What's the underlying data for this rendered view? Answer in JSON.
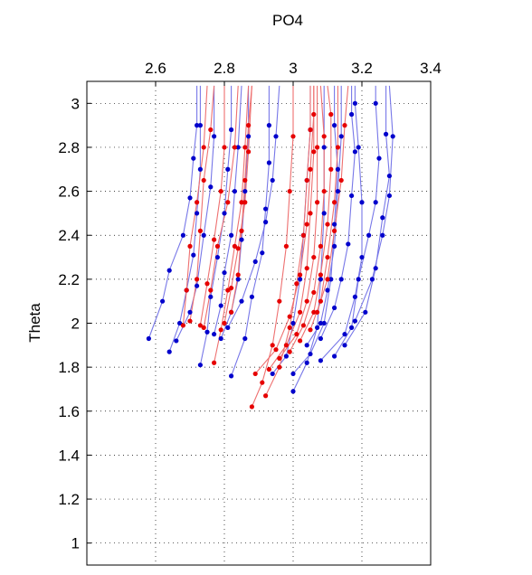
{
  "chart_data": {
    "type": "line",
    "title": "",
    "xlabel": "PO4",
    "ylabel": "Theta",
    "xlim": [
      2.4,
      3.4
    ],
    "ylim": [
      0.9,
      3.1
    ],
    "x_ticks": [
      "2.6",
      "2.8",
      "3",
      "3.2",
      "3.4"
    ],
    "y_ticks": [
      "1",
      "1.2",
      "1.4",
      "1.6",
      "1.8",
      "2",
      "2.2",
      "2.4",
      "2.6",
      "2.8",
      "3"
    ],
    "x_tick_values": [
      2.6,
      2.8,
      3.0,
      3.2,
      3.4
    ],
    "y_tick_values": [
      1.0,
      1.2,
      1.4,
      1.6,
      1.8,
      2.0,
      2.2,
      2.4,
      2.6,
      2.8,
      3.0
    ],
    "x_axis_position": "top",
    "grid": true,
    "colors": {
      "blue": "#0000cc",
      "red": "#e60000",
      "blue_line": "#7777e8",
      "red_line": "#ee7070"
    },
    "series": [
      {
        "color": "blue",
        "points": [
          [
            2.58,
            1.93
          ],
          [
            2.62,
            2.1
          ],
          [
            2.64,
            2.24
          ],
          [
            2.68,
            2.4
          ],
          [
            2.7,
            2.57
          ],
          [
            2.71,
            2.75
          ],
          [
            2.72,
            2.9
          ],
          [
            2.72,
            3.08
          ]
        ]
      },
      {
        "color": "blue",
        "points": [
          [
            2.64,
            1.87
          ],
          [
            2.67,
            2.0
          ],
          [
            2.69,
            2.15
          ],
          [
            2.71,
            2.31
          ],
          [
            2.72,
            2.5
          ],
          [
            2.73,
            2.7
          ],
          [
            2.73,
            2.9
          ],
          [
            2.73,
            3.08
          ]
        ]
      },
      {
        "color": "blue",
        "points": [
          [
            2.66,
            1.92
          ],
          [
            2.7,
            2.05
          ],
          [
            2.72,
            2.17
          ],
          [
            2.74,
            2.4
          ],
          [
            2.76,
            2.62
          ],
          [
            2.77,
            2.85
          ],
          [
            2.77,
            3.08
          ]
        ]
      },
      {
        "color": "blue",
        "points": [
          [
            2.73,
            1.81
          ],
          [
            2.75,
            1.96
          ],
          [
            2.76,
            2.12
          ],
          [
            2.78,
            2.3
          ],
          [
            2.8,
            2.5
          ],
          [
            2.81,
            2.7
          ],
          [
            2.82,
            2.88
          ],
          [
            2.82,
            3.08
          ]
        ]
      },
      {
        "color": "blue",
        "points": [
          [
            2.77,
            1.95
          ],
          [
            2.79,
            2.08
          ],
          [
            2.8,
            2.23
          ],
          [
            2.82,
            2.4
          ],
          [
            2.83,
            2.6
          ],
          [
            2.84,
            2.8
          ],
          [
            2.85,
            3.08
          ]
        ]
      },
      {
        "color": "blue",
        "points": [
          [
            2.79,
            1.93
          ],
          [
            2.82,
            2.05
          ],
          [
            2.84,
            2.2
          ],
          [
            2.85,
            2.38
          ],
          [
            2.86,
            2.6
          ],
          [
            2.87,
            2.85
          ],
          [
            2.87,
            3.08
          ]
        ]
      },
      {
        "color": "blue",
        "points": [
          [
            2.82,
            1.76
          ],
          [
            2.86,
            1.93
          ],
          [
            2.88,
            2.12
          ],
          [
            2.91,
            2.32
          ],
          [
            2.92,
            2.52
          ],
          [
            2.93,
            2.73
          ],
          [
            2.93,
            2.9
          ],
          [
            2.93,
            3.08
          ]
        ]
      },
      {
        "color": "blue",
        "points": [
          [
            2.81,
            1.98
          ],
          [
            2.85,
            2.1
          ],
          [
            2.89,
            2.28
          ],
          [
            2.92,
            2.46
          ],
          [
            2.94,
            2.65
          ],
          [
            2.95,
            2.85
          ],
          [
            2.96,
            3.08
          ]
        ]
      },
      {
        "color": "blue",
        "points": [
          [
            2.94,
            1.77
          ],
          [
            2.98,
            1.85
          ],
          [
            3.0,
            2.0
          ],
          [
            3.02,
            2.2
          ],
          [
            3.03,
            2.4
          ],
          [
            3.04,
            2.65
          ],
          [
            3.05,
            2.88
          ],
          [
            3.05,
            3.08
          ]
        ]
      },
      {
        "color": "blue",
        "points": [
          [
            3.0,
            1.69
          ],
          [
            3.04,
            1.82
          ],
          [
            3.07,
            1.98
          ],
          [
            3.08,
            2.2
          ],
          [
            3.09,
            2.5
          ],
          [
            3.09,
            2.8
          ],
          [
            3.09,
            3.08
          ]
        ]
      },
      {
        "color": "blue",
        "points": [
          [
            3.0,
            1.77
          ],
          [
            3.05,
            1.86
          ],
          [
            3.09,
            2.0
          ],
          [
            3.11,
            2.2
          ],
          [
            3.12,
            2.45
          ],
          [
            3.13,
            2.7
          ],
          [
            3.12,
            2.9
          ],
          [
            3.12,
            3.08
          ]
        ]
      },
      {
        "color": "blue",
        "points": [
          [
            3.04,
            1.9
          ],
          [
            3.08,
            2.0
          ],
          [
            3.1,
            2.15
          ],
          [
            3.12,
            2.35
          ],
          [
            3.13,
            2.6
          ],
          [
            3.14,
            2.85
          ],
          [
            3.14,
            3.08
          ]
        ]
      },
      {
        "color": "blue",
        "points": [
          [
            3.08,
            1.93
          ],
          [
            3.12,
            2.07
          ],
          [
            3.14,
            2.2
          ],
          [
            3.16,
            2.36
          ],
          [
            3.17,
            2.58
          ],
          [
            3.18,
            2.78
          ],
          [
            3.17,
            2.95
          ],
          [
            3.17,
            3.08
          ]
        ]
      },
      {
        "color": "blue",
        "points": [
          [
            3.08,
            1.83
          ],
          [
            3.15,
            1.95
          ],
          [
            3.18,
            2.12
          ],
          [
            3.2,
            2.3
          ],
          [
            3.2,
            2.55
          ],
          [
            3.19,
            2.8
          ],
          [
            3.18,
            3.0
          ],
          [
            3.18,
            3.08
          ]
        ]
      },
      {
        "color": "blue",
        "points": [
          [
            3.12,
            1.85
          ],
          [
            3.17,
            1.98
          ],
          [
            3.19,
            2.2
          ],
          [
            3.22,
            2.4
          ],
          [
            3.24,
            2.55
          ],
          [
            3.25,
            2.75
          ],
          [
            3.24,
            3.0
          ],
          [
            3.24,
            3.08
          ]
        ]
      },
      {
        "color": "blue",
        "points": [
          [
            3.15,
            1.9
          ],
          [
            3.21,
            2.05
          ],
          [
            3.24,
            2.25
          ],
          [
            3.26,
            2.48
          ],
          [
            3.28,
            2.67
          ],
          [
            3.27,
            2.86
          ],
          [
            3.27,
            3.08
          ]
        ]
      },
      {
        "color": "blue",
        "points": [
          [
            3.18,
            2.01
          ],
          [
            3.23,
            2.2
          ],
          [
            3.26,
            2.4
          ],
          [
            3.28,
            2.58
          ],
          [
            3.29,
            2.85
          ],
          [
            3.28,
            3.08
          ]
        ]
      },
      {
        "color": "red",
        "points": [
          [
            2.68,
            1.99
          ],
          [
            2.69,
            2.15
          ],
          [
            2.7,
            2.35
          ],
          [
            2.72,
            2.55
          ],
          [
            2.74,
            2.8
          ],
          [
            2.75,
            3.08
          ]
        ]
      },
      {
        "color": "red",
        "points": [
          [
            2.7,
            2.01
          ],
          [
            2.72,
            2.2
          ],
          [
            2.73,
            2.42
          ],
          [
            2.74,
            2.65
          ],
          [
            2.76,
            2.88
          ],
          [
            2.77,
            3.08
          ]
        ]
      },
      {
        "color": "red",
        "points": [
          [
            2.73,
            1.99
          ],
          [
            2.75,
            2.18
          ],
          [
            2.77,
            2.38
          ],
          [
            2.79,
            2.6
          ],
          [
            2.8,
            2.8
          ],
          [
            2.8,
            3.08
          ]
        ]
      },
      {
        "color": "red",
        "points": [
          [
            2.74,
            1.98
          ],
          [
            2.76,
            2.15
          ],
          [
            2.78,
            2.35
          ],
          [
            2.81,
            2.55
          ],
          [
            2.83,
            2.8
          ],
          [
            2.84,
            3.08
          ]
        ]
      },
      {
        "color": "red",
        "points": [
          [
            2.77,
            1.82
          ],
          [
            2.79,
            1.97
          ],
          [
            2.81,
            2.15
          ],
          [
            2.83,
            2.35
          ],
          [
            2.85,
            2.55
          ],
          [
            2.86,
            2.8
          ],
          [
            2.87,
            3.08
          ]
        ]
      },
      {
        "color": "red",
        "points": [
          [
            2.8,
            2.0
          ],
          [
            2.82,
            2.16
          ],
          [
            2.84,
            2.34
          ],
          [
            2.86,
            2.55
          ],
          [
            2.87,
            2.78
          ],
          [
            2.88,
            3.08
          ]
        ]
      },
      {
        "color": "red",
        "points": [
          [
            2.82,
            2.05
          ],
          [
            2.84,
            2.22
          ],
          [
            2.85,
            2.42
          ],
          [
            2.86,
            2.65
          ],
          [
            2.87,
            2.9
          ],
          [
            2.88,
            3.08
          ]
        ]
      },
      {
        "color": "red",
        "points": [
          [
            2.88,
            1.62
          ],
          [
            2.91,
            1.73
          ],
          [
            2.94,
            1.9
          ],
          [
            2.96,
            2.1
          ],
          [
            2.98,
            2.35
          ],
          [
            2.99,
            2.6
          ],
          [
            3.0,
            2.85
          ],
          [
            3.0,
            3.08
          ]
        ]
      },
      {
        "color": "red",
        "points": [
          [
            2.92,
            1.67
          ],
          [
            2.96,
            1.8
          ],
          [
            2.99,
            1.98
          ],
          [
            3.01,
            2.18
          ],
          [
            3.03,
            2.4
          ],
          [
            3.04,
            2.65
          ],
          [
            3.05,
            2.88
          ],
          [
            3.05,
            3.08
          ]
        ]
      },
      {
        "color": "red",
        "points": [
          [
            2.89,
            1.77
          ],
          [
            2.95,
            1.88
          ],
          [
            2.99,
            2.03
          ],
          [
            3.02,
            2.22
          ],
          [
            3.04,
            2.45
          ],
          [
            3.05,
            2.7
          ],
          [
            3.06,
            2.95
          ],
          [
            3.06,
            3.08
          ]
        ]
      },
      {
        "color": "red",
        "points": [
          [
            2.93,
            1.79
          ],
          [
            2.98,
            1.9
          ],
          [
            3.02,
            2.05
          ],
          [
            3.04,
            2.25
          ],
          [
            3.05,
            2.5
          ],
          [
            3.06,
            2.78
          ],
          [
            3.06,
            3.08
          ]
        ]
      },
      {
        "color": "red",
        "points": [
          [
            2.96,
            1.84
          ],
          [
            3.01,
            1.95
          ],
          [
            3.04,
            2.1
          ],
          [
            3.06,
            2.3
          ],
          [
            3.07,
            2.55
          ],
          [
            3.07,
            2.8
          ],
          [
            3.07,
            3.08
          ]
        ]
      },
      {
        "color": "red",
        "points": [
          [
            2.99,
            1.87
          ],
          [
            3.03,
            1.99
          ],
          [
            3.06,
            2.14
          ],
          [
            3.08,
            2.35
          ],
          [
            3.09,
            2.6
          ],
          [
            3.09,
            2.85
          ],
          [
            3.08,
            3.08
          ]
        ]
      },
      {
        "color": "red",
        "points": [
          [
            3.02,
            1.92
          ],
          [
            3.06,
            2.05
          ],
          [
            3.08,
            2.22
          ],
          [
            3.1,
            2.45
          ],
          [
            3.11,
            2.7
          ],
          [
            3.11,
            2.95
          ],
          [
            3.1,
            3.08
          ]
        ]
      },
      {
        "color": "red",
        "points": [
          [
            3.05,
            1.97
          ],
          [
            3.08,
            2.1
          ],
          [
            3.1,
            2.3
          ],
          [
            3.12,
            2.55
          ],
          [
            3.13,
            2.8
          ],
          [
            3.13,
            3.08
          ]
        ]
      },
      {
        "color": "red",
        "points": [
          [
            3.07,
            2.05
          ],
          [
            3.1,
            2.2
          ],
          [
            3.12,
            2.42
          ],
          [
            3.14,
            2.65
          ],
          [
            3.15,
            2.9
          ],
          [
            3.16,
            3.08
          ]
        ]
      }
    ]
  }
}
